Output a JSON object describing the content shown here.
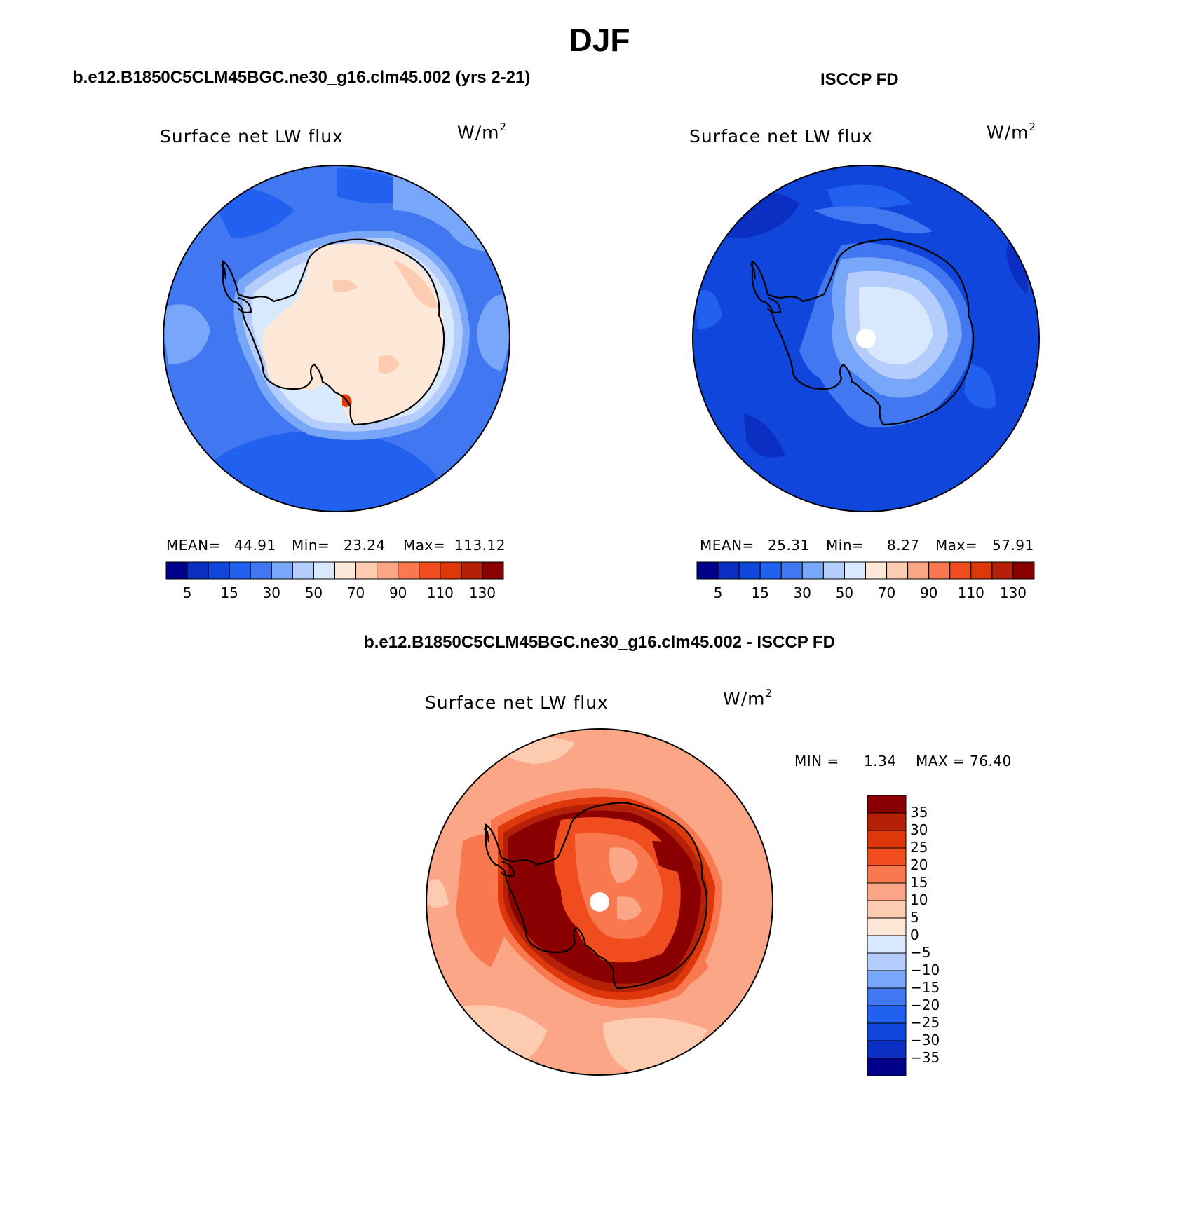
{
  "title": "DJF",
  "panels": {
    "model": {
      "subtitle": "b.e12.B1850C5CLM45BGC.ne30_g16.clm45.002 (yrs 2-21)",
      "label": "Surface net LW flux",
      "units": "W/m",
      "units_sup": "2",
      "mean_label": "MEAN=",
      "mean": "44.91",
      "min_label": "Min=",
      "min": "23.24",
      "max_label": "Max=",
      "max": "113.12"
    },
    "obs": {
      "subtitle": "ISCCP FD",
      "label": "Surface net LW flux",
      "units": "W/m",
      "units_sup": "2",
      "mean_label": "MEAN=",
      "mean": "25.31",
      "min_label": "Min=",
      "min": "8.27",
      "max_label": "Max=",
      "max": "57.91"
    },
    "diff": {
      "subtitle": "b.e12.B1850C5CLM45BGC.ne30_g16.clm45.002 - ISCCP FD",
      "label": "Surface net LW flux",
      "units": "W/m",
      "units_sup": "2",
      "min_label": "MIN =",
      "min": "1.34",
      "max_label": "MAX =",
      "max": "76.40"
    }
  },
  "colorbar_top": {
    "ticks": [
      "5",
      "15",
      "30",
      "50",
      "70",
      "90",
      "110",
      "130"
    ],
    "colors": [
      "#00008b",
      "#0a2fc2",
      "#1046dc",
      "#2260f0",
      "#4177f0",
      "#78a6f9",
      "#b4cdfc",
      "#d8e9fd",
      "#fde8d8",
      "#fccbb0",
      "#fba787",
      "#f9784f",
      "#f04d1e",
      "#de3709",
      "#b52108",
      "#8a0000"
    ]
  },
  "colorbar_diff": {
    "ticks": [
      "35",
      "30",
      "25",
      "20",
      "15",
      "10",
      "5",
      "0",
      "−5",
      "−10",
      "−15",
      "−20",
      "−25",
      "−30",
      "−35"
    ],
    "colors": [
      "#8a0000",
      "#b52108",
      "#de3709",
      "#f04d1e",
      "#f9784f",
      "#fba787",
      "#fccbb0",
      "#fde8d8",
      "#d8e9fd",
      "#b4cdfc",
      "#78a6f9",
      "#4177f0",
      "#2260f0",
      "#1046dc",
      "#0a2fc2",
      "#00008b"
    ]
  },
  "maps": {
    "model": {
      "ocean": "#4177f0",
      "rings": [
        "#2260f0",
        "#78a6f9",
        "#b4cdfc",
        "#d8e9fd"
      ],
      "land": "#fde8d8",
      "land_patch": "#fccbb0",
      "hotspot": "#de3709"
    },
    "obs": {
      "ocean": "#1046dc",
      "rings": [
        "#0a2fc2",
        "#2260f0",
        "#4177f0"
      ],
      "land": "#4177f0",
      "interior": [
        "#78a6f9",
        "#b4cdfc",
        "#d8e9fd"
      ],
      "pole_mask": "#ffffff"
    },
    "diff": {
      "ocean": "#fba787",
      "rings": [
        "#f9784f",
        "#fccbb0",
        "#fde8d8"
      ],
      "coast_high": [
        "#de3709",
        "#b52108",
        "#8a0000"
      ],
      "interior": [
        "#f04d1e",
        "#f9784f",
        "#fba787"
      ],
      "pole_mask": "#ffffff"
    }
  }
}
